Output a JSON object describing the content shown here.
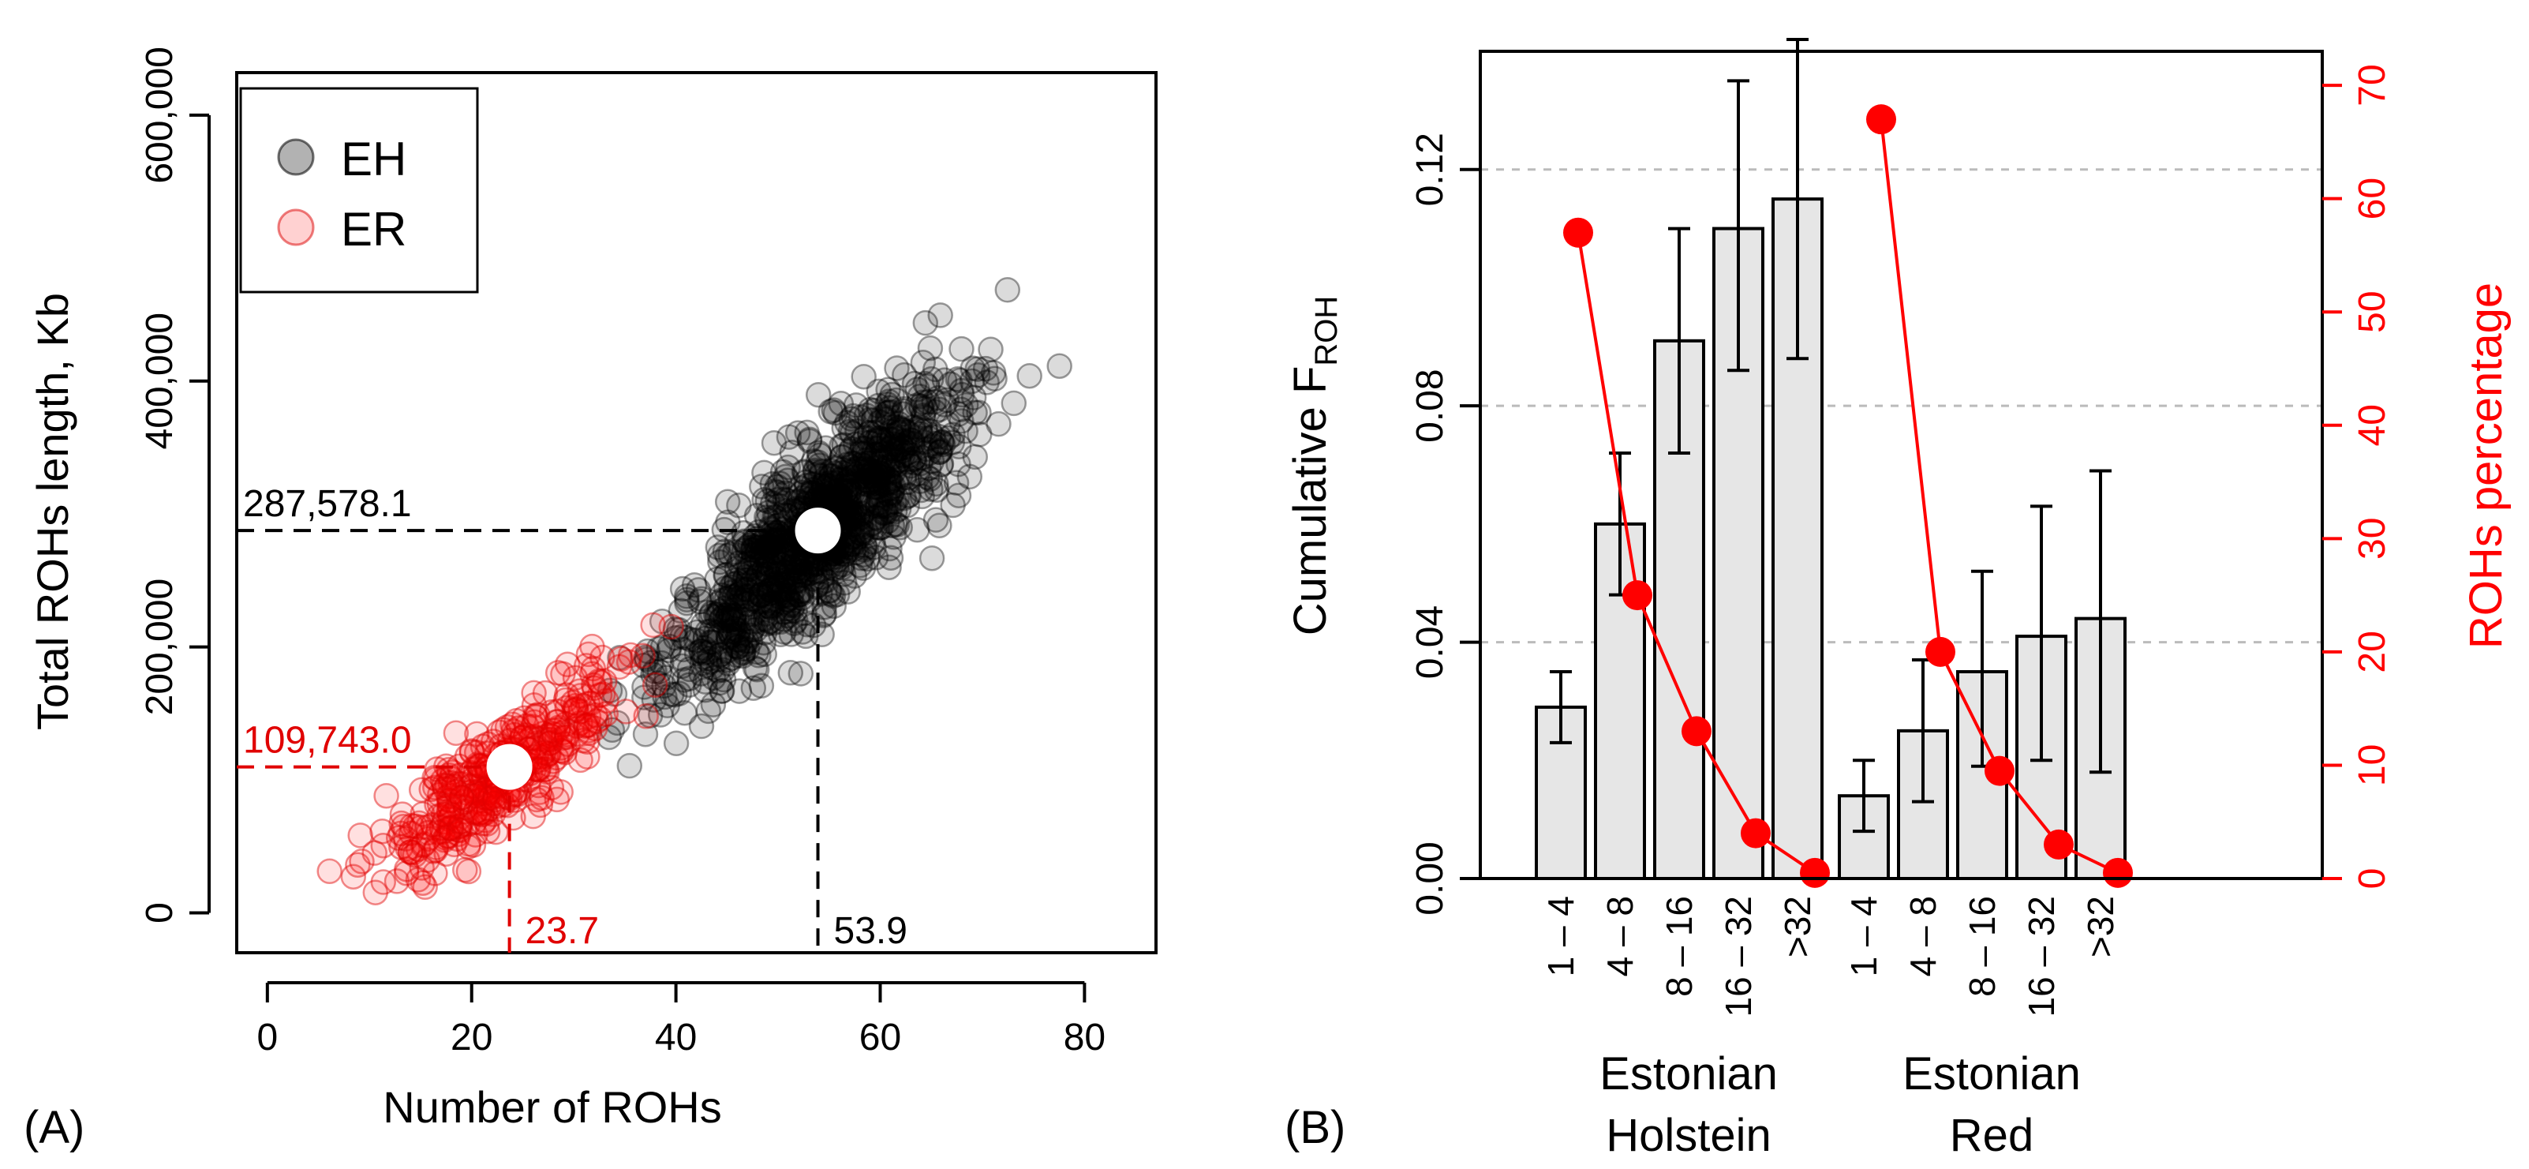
{
  "chart_data": [
    {
      "type": "scatter",
      "panel_label": "(A)",
      "xlabel": "Number of ROHs",
      "ylabel": "Total ROHs length, Kb",
      "xlim": [
        -3,
        87
      ],
      "ylim": [
        -30000,
        632000
      ],
      "x_ticks": [
        {
          "value": 0,
          "label": "0"
        },
        {
          "value": 20,
          "label": "20"
        },
        {
          "value": 40,
          "label": "40"
        },
        {
          "value": 60,
          "label": "60"
        },
        {
          "value": 80,
          "label": "80"
        }
      ],
      "y_ticks": [
        {
          "value": 0,
          "label": "0"
        },
        {
          "value": 200000,
          "label": "200,000"
        },
        {
          "value": 400000,
          "label": "400,000"
        },
        {
          "value": 600000,
          "label": "600,000"
        }
      ],
      "legend": {
        "position": "top-left",
        "entries": [
          {
            "label": "EH",
            "color": "#000000"
          },
          {
            "label": "ER",
            "color": "#ff0000"
          }
        ]
      },
      "series": [
        {
          "name": "EH",
          "color": "#000000",
          "mean": {
            "x": 53.9,
            "y": 287578.1
          },
          "labels": {
            "x": "53.9",
            "y": "287,578.1"
          }
        },
        {
          "name": "ER",
          "color": "#e00000",
          "mean": {
            "x": 23.7,
            "y": 109743.0
          },
          "labels": {
            "x": "23.7",
            "y": "109,743.0"
          }
        }
      ]
    },
    {
      "type": "bar",
      "panel_label": "(B)",
      "ylabel_main": "Cumulative  F",
      "ylabel_sub": "ROH",
      "ylabel_right": "ROHs percentage",
      "ylim": [
        0,
        0.14
      ],
      "ylim_right": [
        0,
        73
      ],
      "y_ticks": [
        {
          "value": 0,
          "label": "0.00"
        },
        {
          "value": 0.04,
          "label": "0.04"
        },
        {
          "value": 0.08,
          "label": "0.08"
        },
        {
          "value": 0.12,
          "label": "0.12"
        }
      ],
      "y_right_ticks": [
        {
          "value": 0,
          "label": "0"
        },
        {
          "value": 10,
          "label": "10"
        },
        {
          "value": 20,
          "label": "20"
        },
        {
          "value": 30,
          "label": "30"
        },
        {
          "value": 40,
          "label": "40"
        },
        {
          "value": 50,
          "label": "50"
        },
        {
          "value": 60,
          "label": "60"
        },
        {
          "value": 70,
          "label": "70"
        }
      ],
      "gridlines": [
        0.04,
        0.08,
        0.12
      ],
      "groups": [
        {
          "name_line1": "Estonian",
          "name_line2": "Holstein",
          "categories": [
            "1 – 4",
            "4 – 8",
            "8 – 16",
            "16 – 32",
            ">32"
          ],
          "values": [
            0.029,
            0.06,
            0.091,
            0.11,
            0.115
          ],
          "err_low": [
            0.023,
            0.048,
            0.072,
            0.086,
            0.088
          ],
          "err_high": [
            0.035,
            0.072,
            0.11,
            0.135,
            0.142
          ],
          "percentage": [
            57,
            25,
            13,
            4,
            0.5
          ]
        },
        {
          "name_line1": "Estonian",
          "name_line2": "Red",
          "categories": [
            "1 – 4",
            "4 – 8",
            "8 – 16",
            "16 – 32",
            ">32"
          ],
          "values": [
            0.014,
            0.025,
            0.035,
            0.041,
            0.044
          ],
          "err_low": [
            0.008,
            0.013,
            0.019,
            0.02,
            0.018
          ],
          "err_high": [
            0.02,
            0.037,
            0.052,
            0.063,
            0.069
          ],
          "percentage": [
            67,
            20,
            9.5,
            3,
            0.5
          ]
        }
      ]
    }
  ]
}
